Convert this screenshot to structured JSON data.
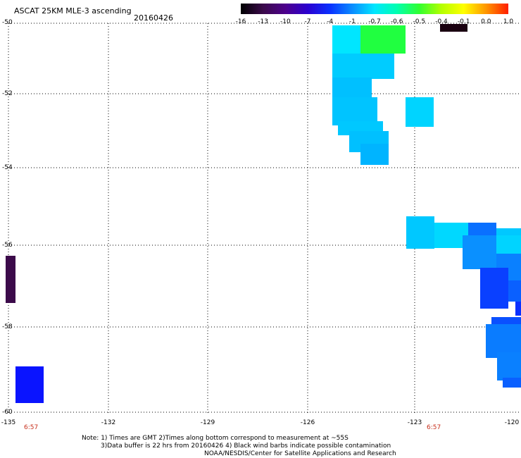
{
  "header": {
    "title": "ASCAT 25KM MLE-3 ascending",
    "date": "20160426"
  },
  "colorbar": {
    "labels": [
      "-16",
      "-13",
      "-10",
      "-7",
      "-4",
      "-1",
      "-0.7",
      "-0.6",
      "-0.5",
      "-0.4",
      "-0.1",
      "0.0",
      "1.0"
    ],
    "colors": [
      "#000000",
      "#3a0a4a",
      "#4d008c",
      "#2a00d0",
      "#0a30ff",
      "#0a8cff",
      "#00e6ff",
      "#00ffb0",
      "#30ff30",
      "#b4ff00",
      "#ffff00",
      "#ff9600",
      "#ff1e00"
    ]
  },
  "axes": {
    "x_ticks": [
      "-135",
      "-132",
      "-129",
      "-126",
      "-123",
      "-120"
    ],
    "y_ticks": [
      "-50",
      "-52",
      "-54",
      "-56",
      "-58",
      "-60"
    ],
    "time_labels": [
      "6:57",
      "6:57"
    ]
  },
  "notes": {
    "line1": "Note: 1) Times are GMT 2)Times along bottom correspond to measurement at ~55S",
    "line2": "3)Data buffer is 22 hrs from 20160426 4) Black wind barbs indicate possible contamination",
    "line3": "NOAA/NESDIS/Center for Satellite Applications and Research"
  },
  "swath_colors": {
    "black": "#1a0010",
    "purple": "#3c0a4a",
    "blue": "#0a14ff",
    "mid_blue": "#0a50ff",
    "sky": "#0aa0ff",
    "light": "#00c8ff",
    "cyan": "#00e6ff",
    "aqua": "#00ffd0",
    "green": "#20ff30"
  }
}
